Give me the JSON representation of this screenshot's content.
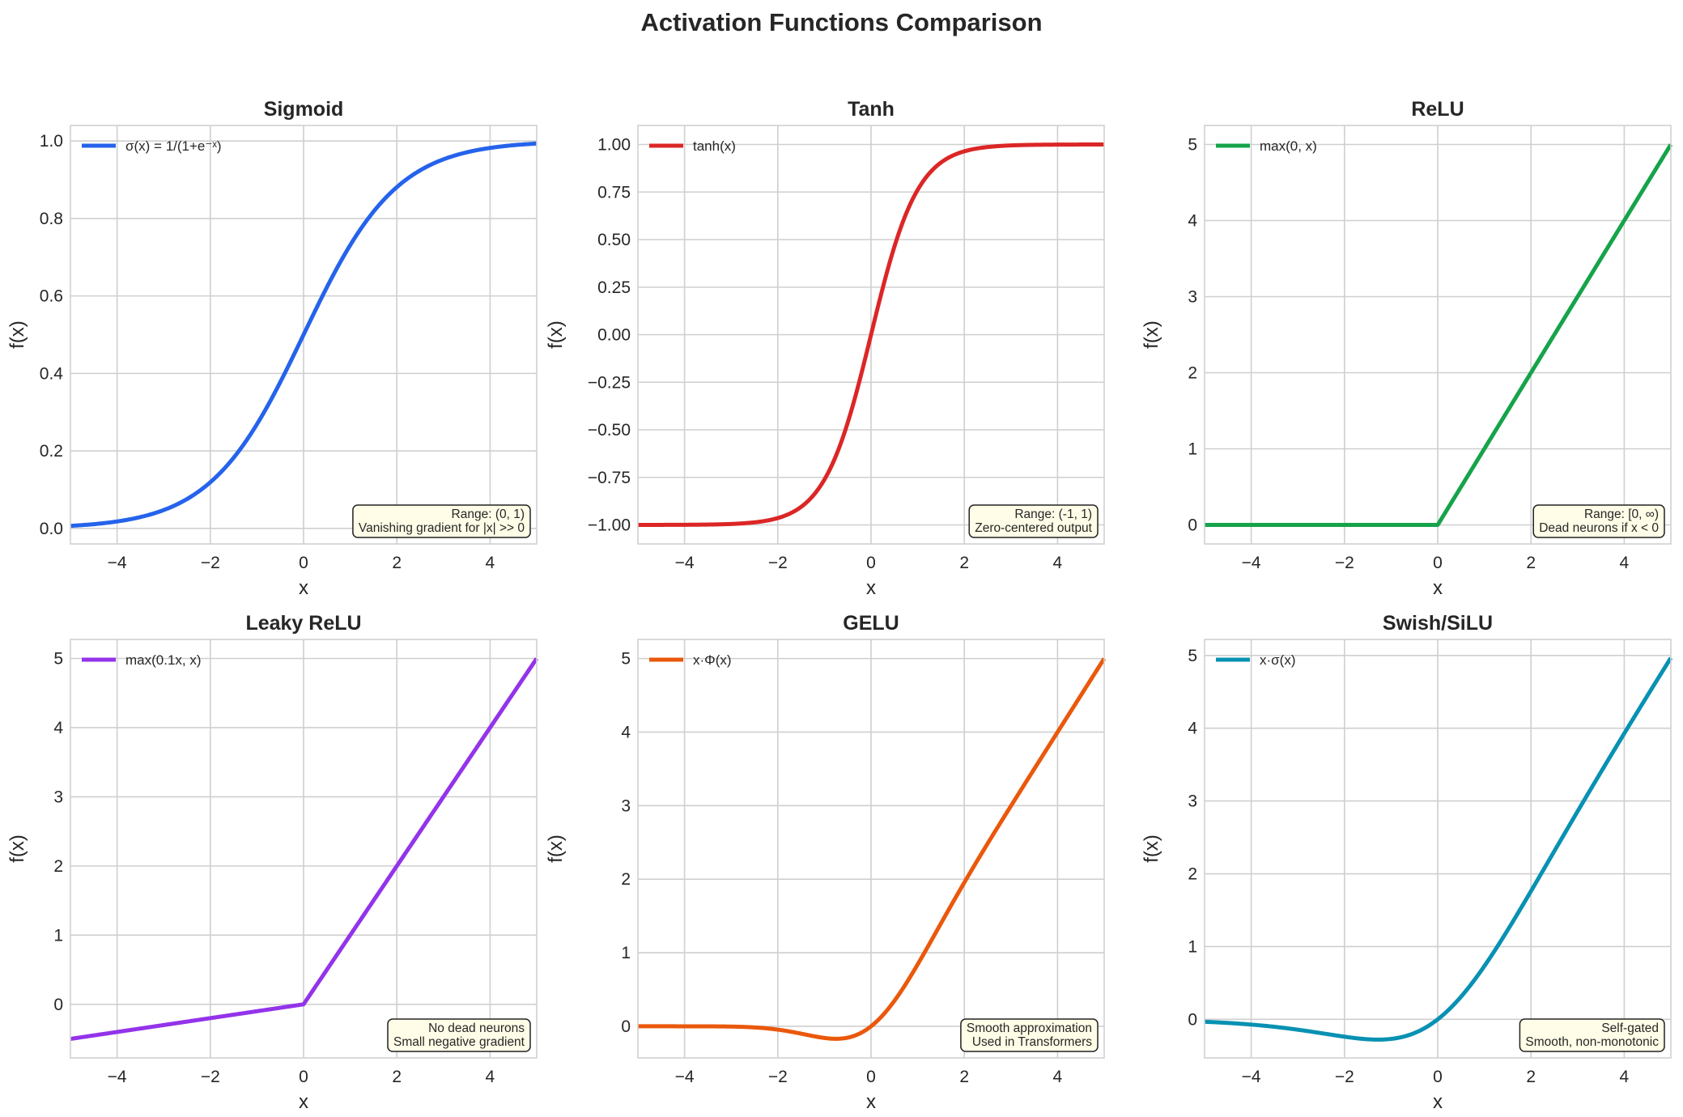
{
  "figure": {
    "title": "Activation Functions Comparison"
  },
  "chart_data": [
    {
      "type": "line",
      "title": "Sigmoid",
      "xlabel": "x",
      "ylabel": "f(x)",
      "xlim": [
        -5,
        5
      ],
      "ylim": [
        -0.04,
        1.04
      ],
      "xticks": [
        -4,
        -2,
        0,
        2,
        4
      ],
      "xtick_labels": [
        "−4",
        "−2",
        "0",
        "2",
        "4"
      ],
      "yticks": [
        0,
        0.2,
        0.4,
        0.6,
        0.8,
        1.0
      ],
      "ytick_labels": [
        "0.0",
        "0.2",
        "0.4",
        "0.6",
        "0.8",
        "1.0"
      ],
      "grid": true,
      "legend_position": "upper-left",
      "annotation_position": "lower-right",
      "series": [
        {
          "name": "σ(x) = 1/(1+e⁻ˣ)",
          "color": "#2563eb",
          "function": "sigmoid"
        }
      ],
      "x": [
        -5,
        -4,
        -3,
        -2,
        -1,
        0,
        1,
        2,
        3,
        4,
        5
      ],
      "y": [
        0.007,
        0.018,
        0.047,
        0.119,
        0.269,
        0.5,
        0.731,
        0.881,
        0.953,
        0.982,
        0.993
      ],
      "annotation": [
        "Range: (0, 1)",
        "Vanishing gradient for |x| >> 0"
      ]
    },
    {
      "type": "line",
      "title": "Tanh",
      "xlabel": "x",
      "ylabel": "f(x)",
      "xlim": [
        -5,
        5
      ],
      "ylim": [
        -1.1,
        1.1
      ],
      "xticks": [
        -4,
        -2,
        0,
        2,
        4
      ],
      "xtick_labels": [
        "−4",
        "−2",
        "0",
        "2",
        "4"
      ],
      "yticks": [
        -1,
        -0.75,
        -0.5,
        -0.25,
        0,
        0.25,
        0.5,
        0.75,
        1
      ],
      "ytick_labels": [
        "−1.00",
        "−0.75",
        "−0.50",
        "−0.25",
        "0.00",
        "0.25",
        "0.50",
        "0.75",
        "1.00"
      ],
      "grid": true,
      "legend_position": "upper-left",
      "annotation_position": "lower-right",
      "series": [
        {
          "name": "tanh(x)",
          "color": "#dc2626",
          "function": "tanh"
        }
      ],
      "x": [
        -5,
        -4,
        -3,
        -2,
        -1,
        0,
        1,
        2,
        3,
        4,
        5
      ],
      "y": [
        -1.0,
        -0.999,
        -0.995,
        -0.964,
        -0.762,
        0.0,
        0.762,
        0.964,
        0.995,
        0.999,
        1.0
      ],
      "annotation": [
        "Range: (-1, 1)",
        "Zero-centered output"
      ]
    },
    {
      "type": "line",
      "title": "ReLU",
      "xlabel": "x",
      "ylabel": "f(x)",
      "xlim": [
        -5,
        5
      ],
      "ylim": [
        -0.25,
        5.25
      ],
      "xticks": [
        -4,
        -2,
        0,
        2,
        4
      ],
      "xtick_labels": [
        "−4",
        "−2",
        "0",
        "2",
        "4"
      ],
      "yticks": [
        0,
        1,
        2,
        3,
        4,
        5
      ],
      "ytick_labels": [
        "0",
        "1",
        "2",
        "3",
        "4",
        "5"
      ],
      "grid": true,
      "legend_position": "upper-left",
      "annotation_position": "lower-right",
      "series": [
        {
          "name": "max(0, x)",
          "color": "#16a34a",
          "function": "relu"
        }
      ],
      "x": [
        -5,
        -4,
        -3,
        -2,
        -1,
        0,
        1,
        2,
        3,
        4,
        5
      ],
      "y": [
        0,
        0,
        0,
        0,
        0,
        0,
        1,
        2,
        3,
        4,
        5
      ],
      "annotation": [
        "Range: [0, ∞)",
        "Dead neurons if x < 0"
      ]
    },
    {
      "type": "line",
      "title": "Leaky ReLU",
      "xlabel": "x",
      "ylabel": "f(x)",
      "xlim": [
        -5,
        5
      ],
      "ylim": [
        -0.775,
        5.275
      ],
      "xticks": [
        -4,
        -2,
        0,
        2,
        4
      ],
      "xtick_labels": [
        "−4",
        "−2",
        "0",
        "2",
        "4"
      ],
      "yticks": [
        0,
        1,
        2,
        3,
        4,
        5
      ],
      "ytick_labels": [
        "0",
        "1",
        "2",
        "3",
        "4",
        "5"
      ],
      "grid": true,
      "legend_position": "upper-left",
      "annotation_position": "lower-right",
      "series": [
        {
          "name": "max(0.1x, x)",
          "color": "#9333ea",
          "function": "leaky_relu"
        }
      ],
      "x": [
        -5,
        -4,
        -3,
        -2,
        -1,
        0,
        1,
        2,
        3,
        4,
        5
      ],
      "y": [
        -0.5,
        -0.4,
        -0.3,
        -0.2,
        -0.1,
        0,
        1,
        2,
        3,
        4,
        5
      ],
      "annotation": [
        "No dead neurons",
        "Small negative gradient"
      ]
    },
    {
      "type": "line",
      "title": "GELU",
      "xlabel": "x",
      "ylabel": "f(x)",
      "xlim": [
        -5,
        5
      ],
      "ylim": [
        -0.43,
        5.26
      ],
      "xticks": [
        -4,
        -2,
        0,
        2,
        4
      ],
      "xtick_labels": [
        "−4",
        "−2",
        "0",
        "2",
        "4"
      ],
      "yticks": [
        0,
        1,
        2,
        3,
        4,
        5
      ],
      "ytick_labels": [
        "0",
        "1",
        "2",
        "3",
        "4",
        "5"
      ],
      "grid": true,
      "legend_position": "upper-left",
      "annotation_position": "lower-right",
      "series": [
        {
          "name": "x·Φ(x)",
          "color": "#ea580c",
          "function": "gelu"
        }
      ],
      "x": [
        -5,
        -4,
        -3,
        -2,
        -1,
        0,
        1,
        2,
        3,
        4,
        5
      ],
      "y": [
        0.0,
        0.0,
        -0.004,
        -0.045,
        -0.159,
        0.0,
        0.841,
        1.955,
        2.996,
        4.0,
        5.0
      ],
      "annotation": [
        "Smooth approximation",
        "Used in Transformers"
      ]
    },
    {
      "type": "line",
      "title": "Swish/SiLU",
      "xlabel": "x",
      "ylabel": "f(x)",
      "xlim": [
        -5,
        5
      ],
      "ylim": [
        -0.53,
        5.22
      ],
      "xticks": [
        -4,
        -2,
        0,
        2,
        4
      ],
      "xtick_labels": [
        "−4",
        "−2",
        "0",
        "2",
        "4"
      ],
      "yticks": [
        0,
        1,
        2,
        3,
        4,
        5
      ],
      "ytick_labels": [
        "0",
        "1",
        "2",
        "3",
        "4",
        "5"
      ],
      "grid": true,
      "legend_position": "upper-left",
      "annotation_position": "lower-right",
      "series": [
        {
          "name": "x·σ(x)",
          "color": "#0891b2",
          "function": "swish"
        }
      ],
      "x": [
        -5,
        -4,
        -3,
        -2,
        -1,
        0,
        1,
        2,
        3,
        4,
        5
      ],
      "y": [
        -0.033,
        -0.072,
        -0.142,
        -0.238,
        -0.269,
        0.0,
        0.731,
        1.762,
        2.858,
        3.928,
        4.967
      ],
      "annotation": [
        "Self-gated",
        "Smooth, non-monotonic"
      ]
    }
  ]
}
